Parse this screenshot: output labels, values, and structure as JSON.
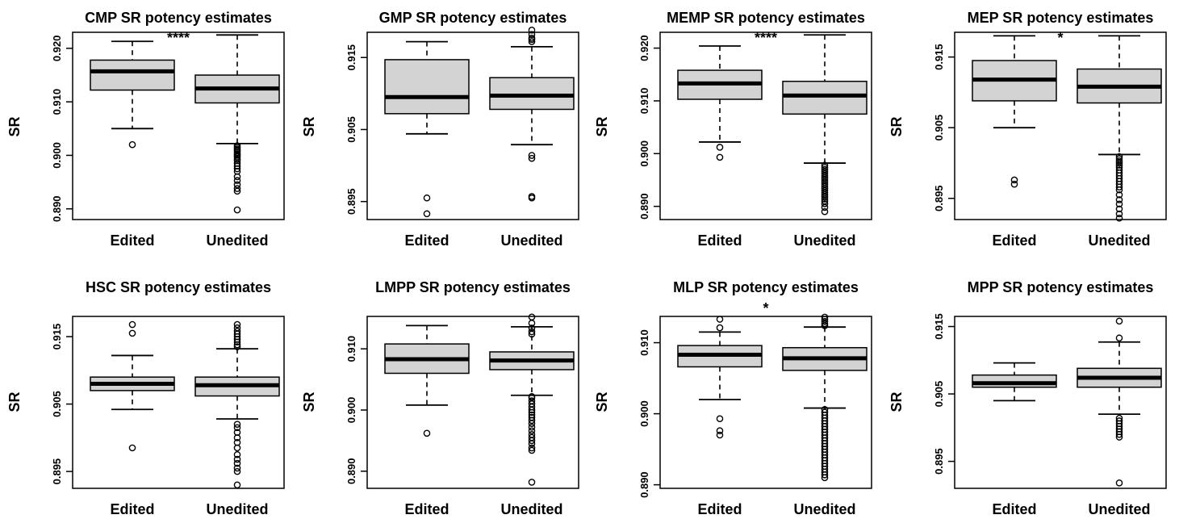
{
  "chart_data": [
    {
      "type": "box",
      "title": "CMP SR potency estimates",
      "significance": "****",
      "ylabel": "SR",
      "yticks": [
        0.89,
        0.9,
        0.91,
        0.92
      ],
      "ytick_labels": [
        "0.890",
        "0.900",
        "0.910",
        "0.920"
      ],
      "ylim": [
        0.888,
        0.923
      ],
      "categories": [
        "Edited",
        "Unedited"
      ],
      "boxes": [
        {
          "name": "Edited",
          "whisker_low": 0.905,
          "q1": 0.9122,
          "median": 0.9157,
          "q3": 0.9178,
          "whisker_high": 0.9213,
          "outliers": [
            0.902
          ]
        },
        {
          "name": "Unedited",
          "whisker_low": 0.9022,
          "q1": 0.9098,
          "median": 0.9125,
          "q3": 0.915,
          "whisker_high": 0.9225,
          "outliers": [
            0.9018,
            0.9015,
            0.9012,
            0.901,
            0.9008,
            0.9005,
            0.9002,
            0.9,
            0.8997,
            0.8993,
            0.899,
            0.8985,
            0.898,
            0.8975,
            0.897,
            0.896,
            0.8953,
            0.8945,
            0.8938,
            0.8933,
            0.8898
          ]
        }
      ]
    },
    {
      "type": "box",
      "title": "GMP SR potency estimates",
      "significance": "",
      "ylabel": "SR",
      "yticks": [
        0.895,
        0.905,
        0.915
      ],
      "ytick_labels": [
        "0.895",
        "0.905",
        "0.915"
      ],
      "ylim": [
        0.8925,
        0.9185
      ],
      "categories": [
        "Edited",
        "Unedited"
      ],
      "boxes": [
        {
          "name": "Edited",
          "whisker_low": 0.9044,
          "q1": 0.9072,
          "median": 0.9095,
          "q3": 0.9147,
          "whisker_high": 0.9172,
          "outliers": [
            0.8955,
            0.8933
          ]
        },
        {
          "name": "Unedited",
          "whisker_low": 0.9029,
          "q1": 0.9078,
          "median": 0.9097,
          "q3": 0.9122,
          "whisker_high": 0.9165,
          "outliers": [
            0.9188,
            0.9182,
            0.9177,
            0.9175,
            0.9172,
            0.9014,
            0.901,
            0.8957,
            0.8955
          ]
        }
      ]
    },
    {
      "type": "box",
      "title": "MEMP SR potency estimates",
      "significance": "****",
      "ylabel": "SR",
      "yticks": [
        0.89,
        0.9,
        0.91,
        0.92
      ],
      "ytick_labels": [
        "0.890",
        "0.900",
        "0.910",
        "0.920"
      ],
      "ylim": [
        0.8875,
        0.923
      ],
      "categories": [
        "Edited",
        "Unedited"
      ],
      "boxes": [
        {
          "name": "Edited",
          "whisker_low": 0.9022,
          "q1": 0.9103,
          "median": 0.9133,
          "q3": 0.9158,
          "whisker_high": 0.9204,
          "outliers": [
            0.9012,
            0.8993
          ]
        },
        {
          "name": "Unedited",
          "whisker_low": 0.8982,
          "q1": 0.9075,
          "median": 0.911,
          "q3": 0.9137,
          "whisker_high": 0.9225,
          "outliers": [
            0.8978,
            0.8974,
            0.897,
            0.8966,
            0.8962,
            0.8958,
            0.8954,
            0.895,
            0.8946,
            0.8942,
            0.8938,
            0.8934,
            0.893,
            0.8926,
            0.8922,
            0.8918,
            0.8914,
            0.891,
            0.8905,
            0.8898,
            0.889
          ]
        }
      ]
    },
    {
      "type": "box",
      "title": "MEP SR potency estimates",
      "significance": "*",
      "ylabel": "SR",
      "yticks": [
        0.895,
        0.905,
        0.915
      ],
      "ytick_labels": [
        "0.895",
        "0.905",
        "0.915"
      ],
      "ylim": [
        0.892,
        0.9185
      ],
      "categories": [
        "Edited",
        "Unedited"
      ],
      "boxes": [
        {
          "name": "Edited",
          "whisker_low": 0.905,
          "q1": 0.9088,
          "median": 0.9118,
          "q3": 0.9145,
          "whisker_high": 0.918,
          "outliers": [
            0.8976,
            0.897
          ]
        },
        {
          "name": "Unedited",
          "whisker_low": 0.9012,
          "q1": 0.9085,
          "median": 0.9108,
          "q3": 0.9133,
          "whisker_high": 0.918,
          "outliers": [
            0.9009,
            0.9006,
            0.9003,
            0.9,
            0.8997,
            0.8994,
            0.899,
            0.8986,
            0.8982,
            0.8978,
            0.8974,
            0.897,
            0.8966,
            0.8962,
            0.8955,
            0.8948,
            0.8942,
            0.8935,
            0.8928,
            0.8922
          ]
        }
      ]
    },
    {
      "type": "box",
      "title": "HSC SR potency estimates",
      "significance": "",
      "ylabel": "SR",
      "yticks": [
        0.895,
        0.905,
        0.915
      ],
      "ytick_labels": [
        "0.895",
        "0.905",
        "0.915"
      ],
      "ylim": [
        0.8925,
        0.918
      ],
      "categories": [
        "Edited",
        "Unedited"
      ],
      "boxes": [
        {
          "name": "Edited",
          "whisker_low": 0.9042,
          "q1": 0.907,
          "median": 0.908,
          "q3": 0.909,
          "whisker_high": 0.9122,
          "outliers": [
            0.9168,
            0.9155,
            0.8985
          ]
        },
        {
          "name": "Unedited",
          "whisker_low": 0.9028,
          "q1": 0.9062,
          "median": 0.9078,
          "q3": 0.909,
          "whisker_high": 0.9132,
          "outliers": [
            0.9168,
            0.9163,
            0.9158,
            0.9154,
            0.915,
            0.9146,
            0.9142,
            0.9138,
            0.9135,
            0.902,
            0.9015,
            0.9008,
            0.9,
            0.8993,
            0.8985,
            0.8975,
            0.8968,
            0.8962,
            0.8955,
            0.895,
            0.893
          ]
        }
      ]
    },
    {
      "type": "box",
      "title": "LMPP SR potency estimates",
      "significance": "",
      "ylabel": "SR",
      "yticks": [
        0.89,
        0.9,
        0.91
      ],
      "ytick_labels": [
        "0.890",
        "0.900",
        "0.910"
      ],
      "ylim": [
        0.8872,
        0.9153
      ],
      "categories": [
        "Edited",
        "Unedited"
      ],
      "boxes": [
        {
          "name": "Edited",
          "whisker_low": 0.9008,
          "q1": 0.906,
          "median": 0.9083,
          "q3": 0.9108,
          "whisker_high": 0.9138,
          "outliers": [
            0.8962
          ]
        },
        {
          "name": "Unedited",
          "whisker_low": 0.9024,
          "q1": 0.9066,
          "median": 0.9081,
          "q3": 0.9095,
          "whisker_high": 0.9136,
          "outliers": [
            0.9152,
            0.9142,
            0.9134,
            0.9128,
            0.9124,
            0.9022,
            0.902,
            0.9015,
            0.901,
            0.9005,
            0.9,
            0.8996,
            0.8992,
            0.8988,
            0.8983,
            0.8978,
            0.8972,
            0.8966,
            0.896,
            0.8955,
            0.895,
            0.8945,
            0.8938,
            0.8934,
            0.8882
          ]
        }
      ]
    },
    {
      "type": "box",
      "title": "MLP SR potency estimates",
      "significance": "*",
      "ylabel": "SR",
      "yticks": [
        0.89,
        0.9,
        0.91
      ],
      "ytick_labels": [
        "0.890",
        "0.900",
        "0.910"
      ],
      "ylim": [
        0.8895,
        0.9137
      ],
      "categories": [
        "Edited",
        "Unedited"
      ],
      "boxes": [
        {
          "name": "Edited",
          "whisker_low": 0.902,
          "q1": 0.9066,
          "median": 0.9083,
          "q3": 0.9096,
          "whisker_high": 0.9115,
          "outliers": [
            0.9133,
            0.9121,
            0.8993,
            0.8976,
            0.897
          ]
        },
        {
          "name": "Unedited",
          "whisker_low": 0.9008,
          "q1": 0.9061,
          "median": 0.9078,
          "q3": 0.9093,
          "whisker_high": 0.9122,
          "outliers": [
            0.9136,
            0.9133,
            0.913,
            0.9127,
            0.9124,
            0.9006,
            0.9002,
            0.8998,
            0.8994,
            0.899,
            0.8986,
            0.8982,
            0.8978,
            0.8974,
            0.897,
            0.8966,
            0.8962,
            0.8958,
            0.8954,
            0.895,
            0.8946,
            0.8942,
            0.8938,
            0.8934,
            0.893,
            0.8926,
            0.8922,
            0.8918,
            0.8914,
            0.891
          ]
        }
      ]
    },
    {
      "type": "box",
      "title": "MPP SR potency estimates",
      "significance": "",
      "ylabel": "SR",
      "yticks": [
        0.895,
        0.905,
        0.915
      ],
      "ytick_labels": [
        "0.895",
        "0.905",
        "0.915"
      ],
      "ylim": [
        0.891,
        0.9165
      ],
      "categories": [
        "Edited",
        "Unedited"
      ],
      "boxes": [
        {
          "name": "Edited",
          "whisker_low": 0.904,
          "q1": 0.906,
          "median": 0.9066,
          "q3": 0.9078,
          "whisker_high": 0.9096,
          "outliers": []
        },
        {
          "name": "Unedited",
          "whisker_low": 0.902,
          "q1": 0.906,
          "median": 0.9074,
          "q3": 0.9088,
          "whisker_high": 0.9127,
          "outliers": [
            0.9158,
            0.9133,
            0.9014,
            0.901,
            0.9006,
            0.9002,
            0.8998,
            0.8994,
            0.899,
            0.8986,
            0.8918
          ]
        }
      ]
    }
  ]
}
